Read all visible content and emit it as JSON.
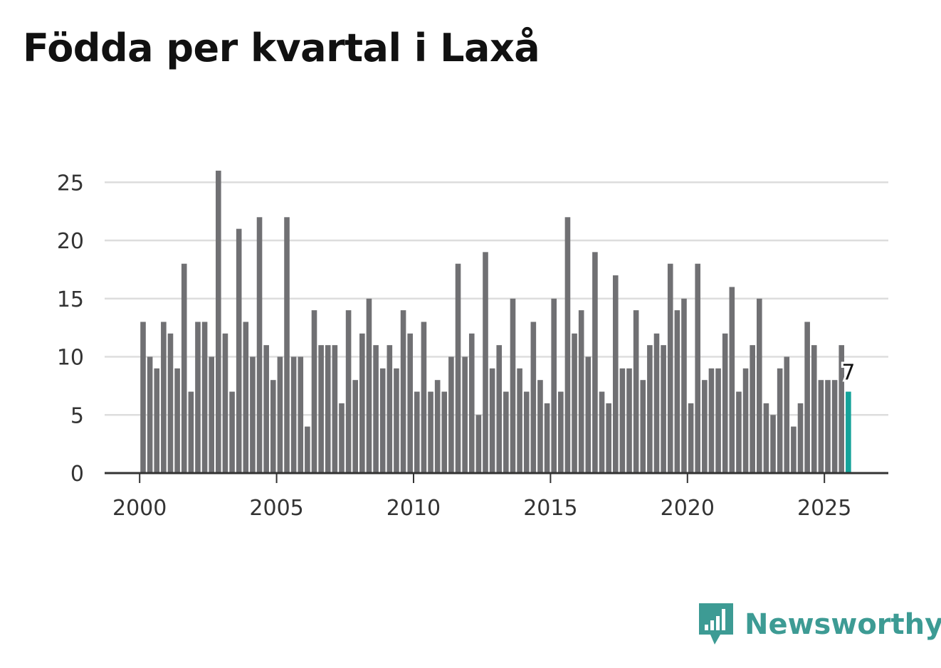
{
  "colors": {
    "bar": "#707073",
    "highlight": "#14a39a",
    "grid": "#dddddd",
    "axis": "#333333",
    "brand": "#3d9b94"
  },
  "brand": {
    "name": "Newsworthy",
    "icon": "bar-chart-speech-bubble-icon"
  },
  "chart_data": {
    "type": "bar",
    "title": "Födda per kvartal i Laxå",
    "xlabel": "",
    "ylabel": "",
    "ylim": [
      0,
      27
    ],
    "yticks": [
      0,
      5,
      10,
      15,
      20,
      25
    ],
    "xticks": [
      "2000",
      "2005",
      "2010",
      "2015",
      "2020",
      "2025"
    ],
    "x_first_period": "2000 Q1",
    "frequency": "quarterly",
    "highlight_last": true,
    "highlight_label": "7",
    "values": [
      13,
      10,
      9,
      13,
      12,
      9,
      18,
      7,
      13,
      13,
      10,
      26,
      12,
      7,
      21,
      13,
      10,
      22,
      11,
      8,
      10,
      22,
      10,
      10,
      4,
      14,
      11,
      11,
      11,
      6,
      14,
      8,
      12,
      15,
      11,
      9,
      11,
      9,
      14,
      12,
      7,
      13,
      7,
      8,
      7,
      10,
      18,
      10,
      12,
      5,
      19,
      9,
      11,
      7,
      15,
      9,
      7,
      13,
      8,
      6,
      15,
      7,
      22,
      12,
      14,
      10,
      19,
      7,
      6,
      17,
      9,
      9,
      14,
      8,
      11,
      12,
      11,
      18,
      14,
      15,
      6,
      18,
      8,
      9,
      9,
      12,
      16,
      7,
      9,
      11,
      15,
      6,
      5,
      9,
      10,
      4,
      6,
      13,
      11,
      8,
      8,
      8,
      11,
      7
    ]
  }
}
